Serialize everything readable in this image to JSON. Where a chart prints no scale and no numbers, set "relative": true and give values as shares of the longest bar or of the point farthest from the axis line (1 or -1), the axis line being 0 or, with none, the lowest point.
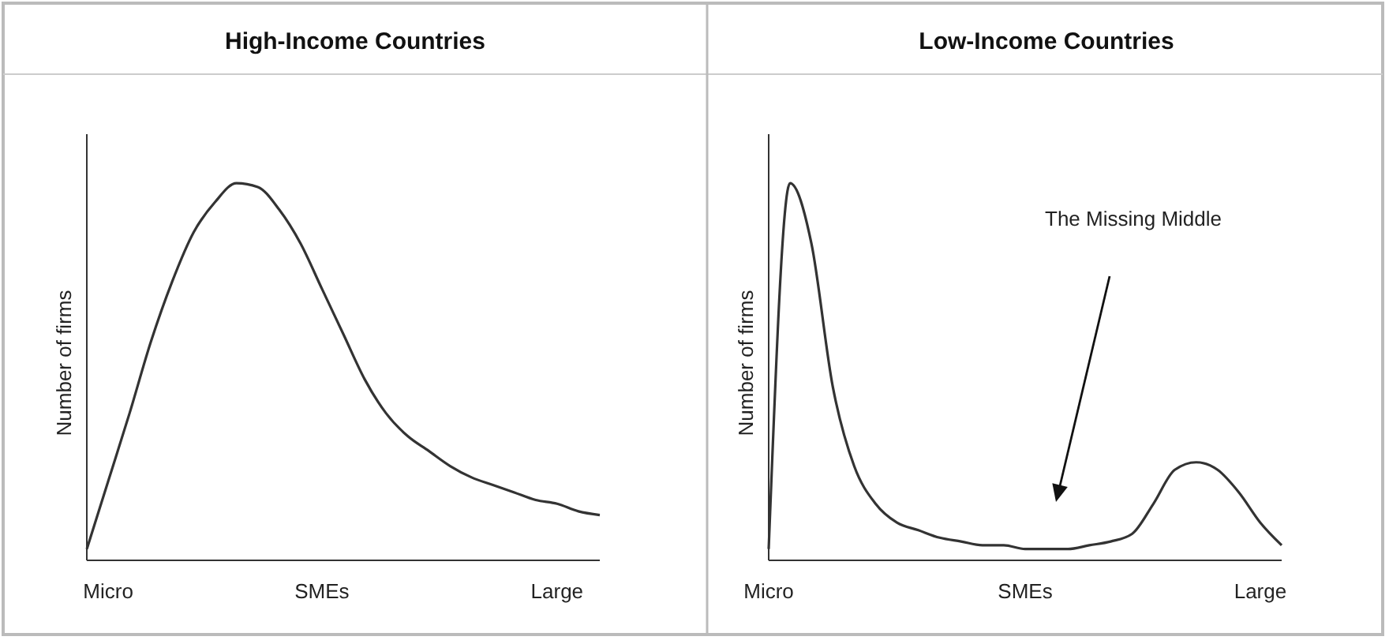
{
  "chart_data": [
    {
      "type": "line",
      "title": "High-Income Countries",
      "ylabel": "Number of firms",
      "relative": true,
      "tick_labels": "x",
      "categories": [
        null,
        "Micro",
        null,
        null,
        null,
        null,
        null,
        null,
        null,
        null,
        null,
        "SMEs",
        null,
        null,
        null,
        null,
        null,
        null,
        null,
        null,
        null,
        null,
        "Large",
        null,
        null
      ],
      "series": [
        {
          "color": "#333333",
          "values": [
            0.03,
            0.21,
            0.39,
            0.58,
            0.74,
            0.87,
            0.95,
            1,
            0.99,
            0.93,
            0.84,
            0.72,
            0.6,
            0.48,
            0.39,
            0.33,
            0.29,
            0.25,
            0.22,
            0.2,
            0.18,
            0.16,
            0.15,
            0.13,
            0.12
          ]
        }
      ]
    },
    {
      "type": "line",
      "title": "Low-Income Countries",
      "ylabel": "Number of firms",
      "relative": true,
      "tick_labels": "x",
      "categories": [
        "Micro",
        null,
        null,
        null,
        null,
        null,
        null,
        null,
        null,
        null,
        null,
        null,
        "SMEs",
        null,
        null,
        null,
        null,
        null,
        null,
        null,
        null,
        null,
        null,
        "Large",
        null
      ],
      "series": [
        {
          "color": "#333333",
          "values": [
            0.03,
            1,
            0.84,
            0.46,
            0.25,
            0.15,
            0.1,
            0.08,
            0.06,
            0.05,
            0.04,
            0.04,
            0.03,
            0.03,
            0.03,
            0.04,
            0.05,
            0.07,
            0.15,
            0.24,
            0.26,
            0.24,
            0.18,
            0.1,
            0.04
          ]
        }
      ],
      "annotations": [
        "The Missing Middle"
      ]
    }
  ]
}
